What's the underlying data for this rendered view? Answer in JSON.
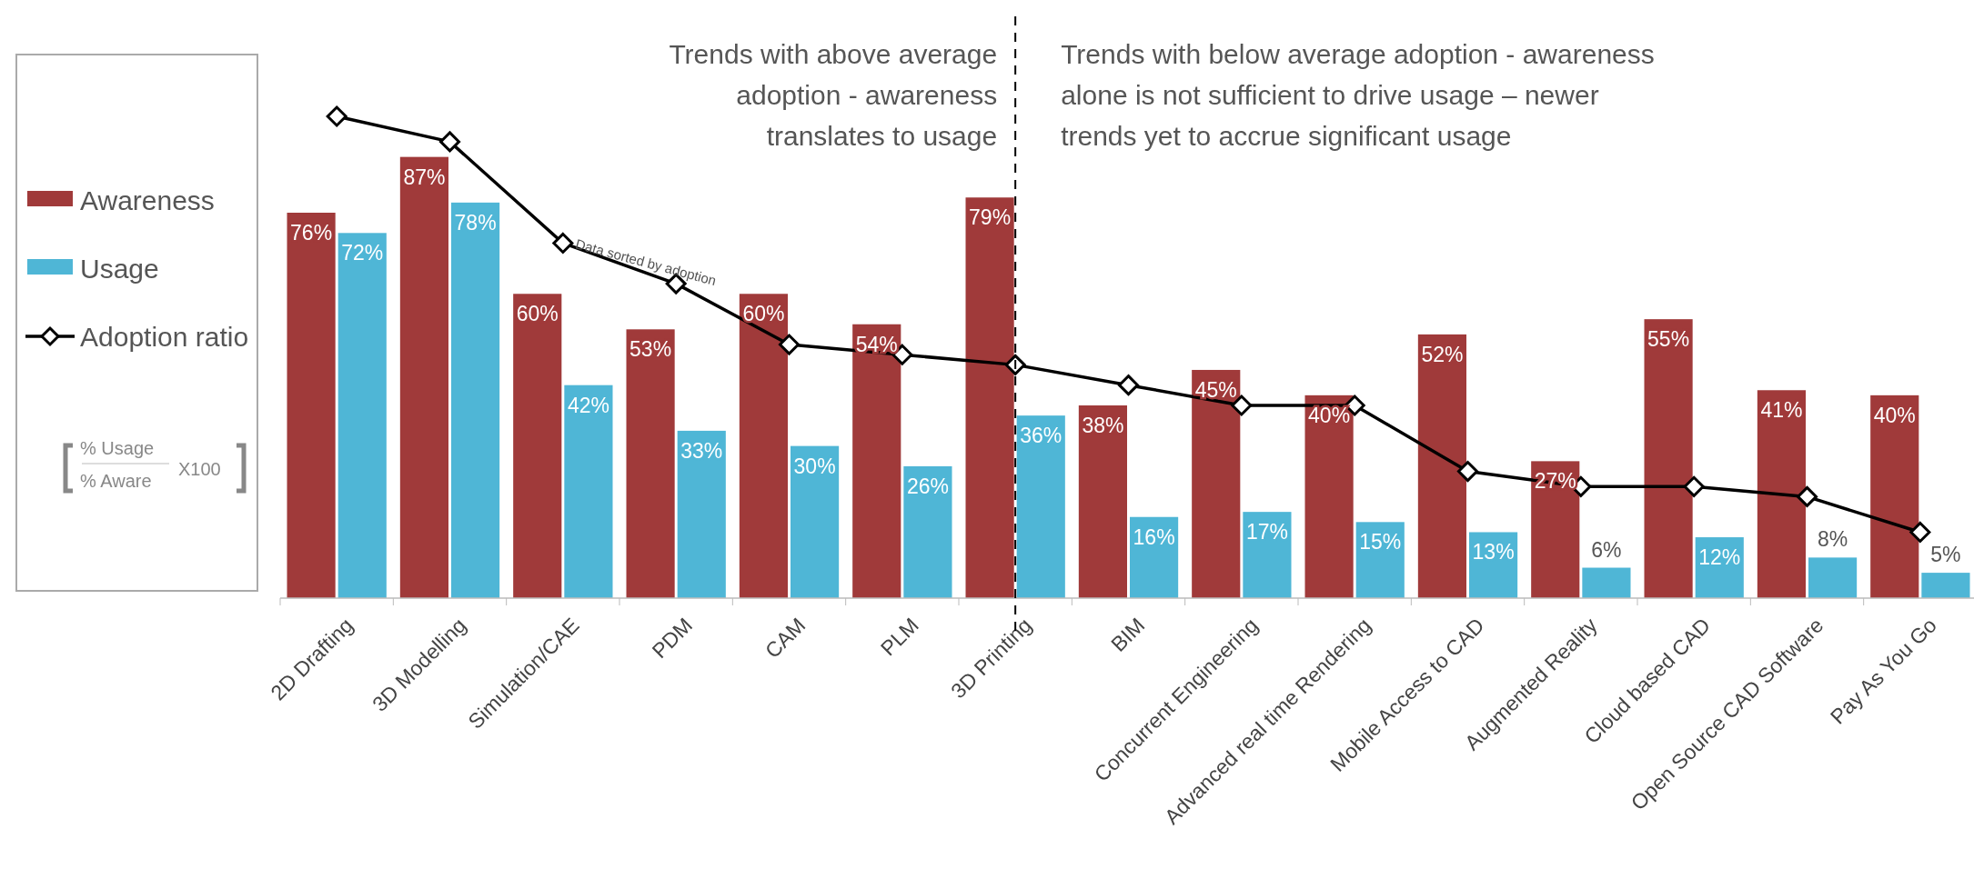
{
  "chart_data": {
    "type": "bar",
    "categories": [
      "2D Drafting",
      "3D Modelling",
      "Simulation/CAE",
      "PDM",
      "CAM",
      "PLM",
      "3D Printing",
      "BIM",
      "Concurrent Engineering",
      "Advanced real time Rendering",
      "Mobile Access to CAD",
      "Augmented Reality",
      "Cloud based CAD",
      "Open Source CAD Software",
      "Pay As You Go"
    ],
    "series": [
      {
        "name": "Awareness",
        "color": "#a03a3a",
        "values": [
          76,
          87,
          60,
          53,
          60,
          54,
          79,
          38,
          45,
          40,
          52,
          27,
          55,
          41,
          40
        ],
        "value_labels": [
          "76%",
          "87%",
          "60%",
          "53%",
          "60%",
          "54%",
          "79%",
          "38%",
          "45%",
          "40%",
          "52%",
          "27%",
          "55%",
          "41%",
          "40%"
        ]
      },
      {
        "name": "Usage",
        "color": "#4fb6d6",
        "values": [
          72,
          78,
          42,
          33,
          30,
          26,
          36,
          16,
          17,
          15,
          13,
          6,
          12,
          8,
          5
        ],
        "value_labels": [
          "72%",
          "78%",
          "42%",
          "33%",
          "30%",
          "26%",
          "36%",
          "16%",
          "17%",
          "15%",
          "13%",
          "6%",
          "12%",
          "8%",
          "5%"
        ]
      },
      {
        "name": "Adoption ratio",
        "type": "line",
        "color": "#000000",
        "marker": "diamond",
        "values": [
          95,
          90,
          70,
          62,
          50,
          48,
          46,
          42,
          38,
          38,
          25,
          22,
          22,
          20,
          13
        ]
      }
    ],
    "tick_labels": "x",
    "legend": "left",
    "ref_lines": [
      {
        "axis": "x",
        "value": "3D Printing",
        "line_style": "dashed",
        "color": "#000000"
      }
    ],
    "annotations": [
      "Trends with above average adoption - awareness translates to usage",
      "Trends with below average adoption - awareness alone is not sufficient to drive usage – newer trends yet to accrue significant usage",
      {
        "text": "Data sorted by adoption",
        "x": "Simulation/CAE",
        "y": 70
      },
      "% Usage",
      "% Aware",
      "X100"
    ]
  }
}
